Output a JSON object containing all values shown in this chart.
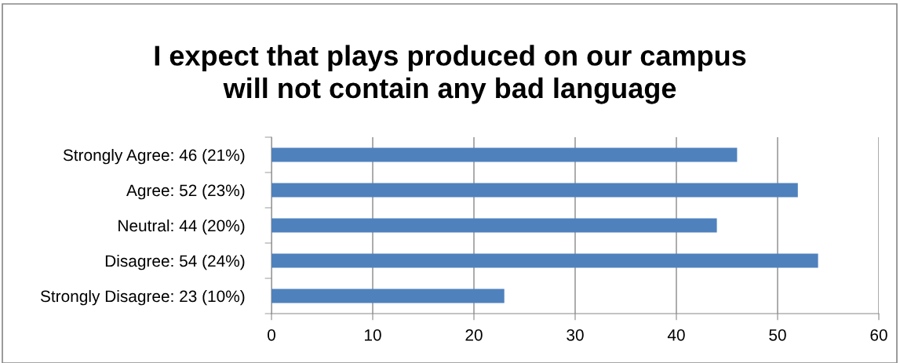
{
  "chart_data": {
    "type": "bar",
    "orientation": "horizontal",
    "title": "I expect that plays produced on our campus\nwill not contain any bad language",
    "categories": [
      "Strongly Agree: 46 (21%)",
      "Agree: 52 (23%)",
      "Neutral: 44 (20%)",
      "Disagree: 54 (24%)",
      "Strongly Disagree: 23 (10%)"
    ],
    "values": [
      46,
      52,
      44,
      54,
      23
    ],
    "color": "#4f81bd",
    "xlim": [
      0,
      60
    ],
    "xticks": [
      0,
      10,
      20,
      30,
      40,
      50,
      60
    ],
    "grid": "x",
    "legend": false
  }
}
